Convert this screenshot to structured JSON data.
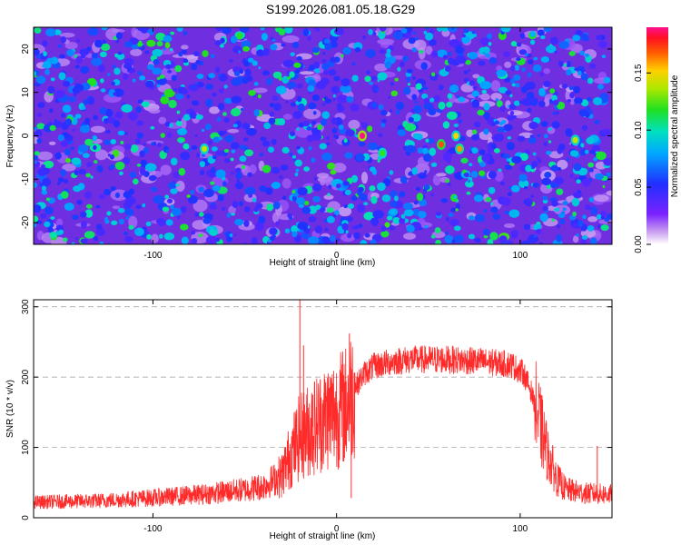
{
  "title": "S199.2026.081.05.18.G29",
  "chart_data": [
    {
      "type": "heatmap",
      "xlabel": "Height of straight line (km)",
      "ylabel": "Frequency (Hz)",
      "xlim": [
        -165,
        150
      ],
      "ylim": [
        -25,
        25
      ],
      "xticks": [
        -100,
        0,
        100
      ],
      "yticks": [
        -20,
        -10,
        0,
        10,
        20
      ],
      "colorbar": {
        "label": "Normalized spectral amplitude",
        "range": [
          0,
          0.19
        ],
        "ticks": [
          "0.00",
          "0.05",
          "0.10",
          "0.15"
        ],
        "tick_values": [
          0.0,
          0.05,
          0.1,
          0.15
        ]
      },
      "hotspots": [
        {
          "x": 14,
          "y": 0,
          "value": 0.19
        },
        {
          "x": 57,
          "y": -2,
          "value": 0.17
        },
        {
          "x": 67,
          "y": -3,
          "value": 0.16
        },
        {
          "x": 65,
          "y": 0,
          "value": 0.15
        },
        {
          "x": 130,
          "y": -1,
          "value": 0.14
        },
        {
          "x": -72,
          "y": -3,
          "value": 0.14
        },
        {
          "x": 25,
          "y": -4,
          "value": 0.12
        }
      ]
    },
    {
      "type": "line",
      "xlabel": "Height of straight line (km)",
      "ylabel": "SNR (10 * v/v)",
      "xlim": [
        -165,
        150
      ],
      "ylim": [
        0,
        310
      ],
      "xticks": [
        -100,
        0,
        100
      ],
      "yticks": [
        0,
        100,
        200,
        300
      ],
      "color": "#ff2a2a",
      "envelope": [
        {
          "x": -165,
          "y": 22
        },
        {
          "x": -150,
          "y": 23
        },
        {
          "x": -130,
          "y": 24
        },
        {
          "x": -110,
          "y": 27
        },
        {
          "x": -90,
          "y": 30
        },
        {
          "x": -70,
          "y": 34
        },
        {
          "x": -50,
          "y": 40
        },
        {
          "x": -40,
          "y": 45
        },
        {
          "x": -30,
          "y": 60
        },
        {
          "x": -25,
          "y": 90
        },
        {
          "x": -20,
          "y": 115
        },
        {
          "x": -15,
          "y": 125
        },
        {
          "x": -10,
          "y": 135
        },
        {
          "x": -5,
          "y": 145
        },
        {
          "x": 0,
          "y": 150
        },
        {
          "x": 5,
          "y": 160
        },
        {
          "x": 10,
          "y": 185
        },
        {
          "x": 15,
          "y": 205
        },
        {
          "x": 20,
          "y": 215
        },
        {
          "x": 30,
          "y": 222
        },
        {
          "x": 40,
          "y": 225
        },
        {
          "x": 60,
          "y": 225
        },
        {
          "x": 80,
          "y": 222
        },
        {
          "x": 95,
          "y": 218
        },
        {
          "x": 102,
          "y": 205
        },
        {
          "x": 106,
          "y": 180
        },
        {
          "x": 110,
          "y": 140
        },
        {
          "x": 115,
          "y": 90
        },
        {
          "x": 120,
          "y": 55
        },
        {
          "x": 125,
          "y": 40
        },
        {
          "x": 135,
          "y": 35
        },
        {
          "x": 150,
          "y": 33
        }
      ],
      "spikes": [
        {
          "x": -20,
          "y": 310
        },
        {
          "x": -18,
          "y": 245
        },
        {
          "x": -13,
          "y": 175
        },
        {
          "x": 7,
          "y": 262
        },
        {
          "x": 8,
          "y": 28
        },
        {
          "x": 142,
          "y": 102
        }
      ]
    }
  ]
}
